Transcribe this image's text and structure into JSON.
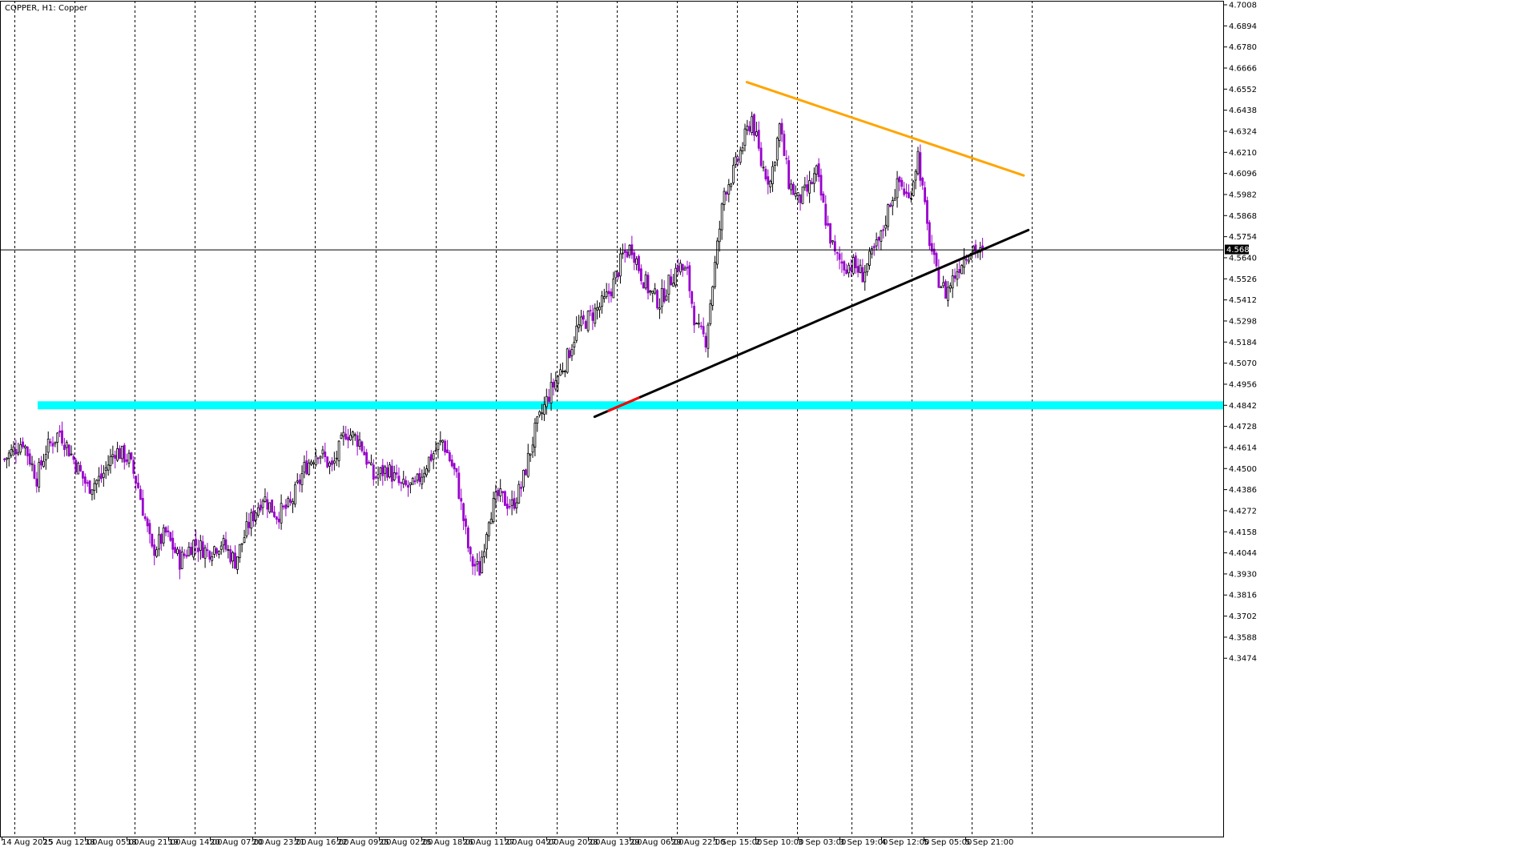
{
  "chart_title": "COPPER, H1:  Copper",
  "current_price_label": "4.5685",
  "chart_data": {
    "type": "candlestick",
    "symbol": "COPPER",
    "timeframe": "H1",
    "description": "Copper",
    "ylim": [
      3.34,
      4.7
    ],
    "y_ticks": [
      "4.7008",
      "4.6894",
      "4.6780",
      "4.6666",
      "4.6552",
      "4.6438",
      "4.6324",
      "4.6210",
      "4.6096",
      "4.5982",
      "4.5868",
      "4.5754",
      "4.5640",
      "4.5526",
      "4.5412",
      "4.5298",
      "4.5184",
      "4.5070",
      "4.4956",
      "4.4842",
      "4.4728",
      "4.4614",
      "4.4500",
      "4.4386",
      "4.4272",
      "4.4158",
      "4.4044",
      "4.3930",
      "4.3816",
      "4.3702",
      "4.3588",
      "4.3474"
    ],
    "x_ticks": [
      "14 Aug 2025",
      "15 Aug 12:00",
      "18 Aug 05:00",
      "18 Aug 21:00",
      "19 Aug 14:00",
      "20 Aug 07:00",
      "20 Aug 23:00",
      "21 Aug 16:00",
      "22 Aug 09:00",
      "25 Aug 02:00",
      "25 Aug 18:00",
      "26 Aug 11:00",
      "27 Aug 04:00",
      "27 Aug 20:00",
      "28 Aug 13:00",
      "29 Aug 06:00",
      "29 Aug 22:00",
      "1 Sep 15:00",
      "2 Sep 10:00",
      "3 Sep 03:00",
      "3 Sep 19:00",
      "4 Sep 12:00",
      "5 Sep 05:00",
      "5 Sep 21:00"
    ],
    "bull_color": "#000000",
    "bear_color": "#9900cc",
    "support_zone": {
      "price": 4.4842,
      "color": "#00ffff"
    },
    "current_price": 4.5685,
    "anchors": [
      [
        0,
        4.455
      ],
      [
        8,
        4.465
      ],
      [
        14,
        4.445
      ],
      [
        18,
        4.46
      ],
      [
        24,
        4.47
      ],
      [
        30,
        4.455
      ],
      [
        36,
        4.44
      ],
      [
        42,
        4.445
      ],
      [
        48,
        4.46
      ],
      [
        54,
        4.455
      ],
      [
        58,
        4.44
      ],
      [
        64,
        4.405
      ],
      [
        70,
        4.415
      ],
      [
        76,
        4.4
      ],
      [
        82,
        4.41
      ],
      [
        88,
        4.405
      ],
      [
        94,
        4.41
      ],
      [
        100,
        4.4
      ],
      [
        106,
        4.42
      ],
      [
        112,
        4.435
      ],
      [
        118,
        4.425
      ],
      [
        124,
        4.43
      ],
      [
        130,
        4.45
      ],
      [
        136,
        4.46
      ],
      [
        142,
        4.45
      ],
      [
        148,
        4.47
      ],
      [
        154,
        4.465
      ],
      [
        160,
        4.445
      ],
      [
        166,
        4.45
      ],
      [
        172,
        4.44
      ],
      [
        178,
        4.44
      ],
      [
        184,
        4.455
      ],
      [
        190,
        4.465
      ],
      [
        196,
        4.445
      ],
      [
        202,
        4.4
      ],
      [
        206,
        4.395
      ],
      [
        210,
        4.425
      ],
      [
        214,
        4.435
      ],
      [
        220,
        4.43
      ],
      [
        224,
        4.44
      ],
      [
        230,
        4.47
      ],
      [
        236,
        4.49
      ],
      [
        240,
        4.5
      ],
      [
        244,
        4.51
      ],
      [
        248,
        4.525
      ],
      [
        252,
        4.53
      ],
      [
        256,
        4.535
      ],
      [
        260,
        4.54
      ],
      [
        264,
        4.55
      ],
      [
        268,
        4.565
      ],
      [
        272,
        4.57
      ],
      [
        276,
        4.555
      ],
      [
        280,
        4.545
      ],
      [
        284,
        4.54
      ],
      [
        288,
        4.55
      ],
      [
        292,
        4.56
      ],
      [
        296,
        4.555
      ],
      [
        300,
        4.525
      ],
      [
        304,
        4.52
      ],
      [
        308,
        4.56
      ],
      [
        312,
        4.6
      ],
      [
        316,
        4.61
      ],
      [
        320,
        4.625
      ],
      [
        324,
        4.64
      ],
      [
        328,
        4.615
      ],
      [
        332,
        4.605
      ],
      [
        336,
        4.635
      ],
      [
        340,
        4.605
      ],
      [
        344,
        4.595
      ],
      [
        348,
        4.6
      ],
      [
        352,
        4.61
      ],
      [
        356,
        4.585
      ],
      [
        360,
        4.565
      ],
      [
        364,
        4.56
      ],
      [
        368,
        4.56
      ],
      [
        372,
        4.555
      ],
      [
        376,
        4.565
      ],
      [
        380,
        4.575
      ],
      [
        384,
        4.595
      ],
      [
        388,
        4.605
      ],
      [
        392,
        4.595
      ],
      [
        396,
        4.62
      ],
      [
        400,
        4.58
      ],
      [
        404,
        4.555
      ],
      [
        408,
        4.545
      ],
      [
        412,
        4.555
      ],
      [
        416,
        4.565
      ],
      [
        420,
        4.57
      ],
      [
        424,
        4.565
      ]
    ],
    "trendlines": [
      {
        "name": "resistance",
        "color": "#ffa500",
        "from": {
          "bar": 322,
          "price": 4.659
        },
        "to": {
          "bar": 442,
          "price": 4.6085
        }
      },
      {
        "name": "rising-support",
        "color": "#000000",
        "from": {
          "bar": 256,
          "price": 4.478
        },
        "to": {
          "bar": 444,
          "price": 4.579
        }
      },
      {
        "name": "rising-support-highlight",
        "color": "#ff0000",
        "from": {
          "bar": 262,
          "price": 4.4812
        },
        "to": {
          "bar": 275,
          "price": 4.4882
        }
      }
    ],
    "total_bars": 425
  }
}
